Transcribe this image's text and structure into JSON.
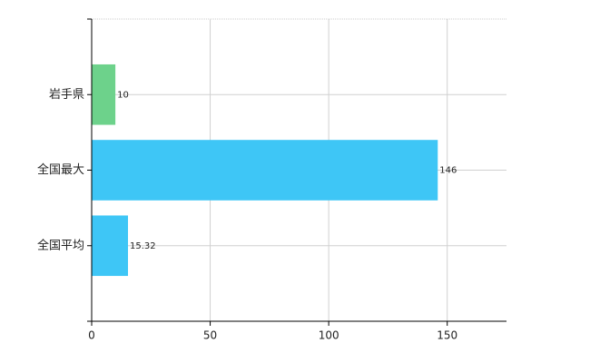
{
  "chart_data": {
    "type": "hbar",
    "categories": [
      "岩手県",
      "全国最大",
      "全国平均"
    ],
    "values": [
      10,
      146,
      15.32
    ],
    "colors": [
      "#6dd28b",
      "#3ec6f6",
      "#3ec6f6"
    ],
    "xlim": [
      0,
      175
    ],
    "xticks": [
      0,
      50,
      100,
      150
    ],
    "grid": true
  }
}
